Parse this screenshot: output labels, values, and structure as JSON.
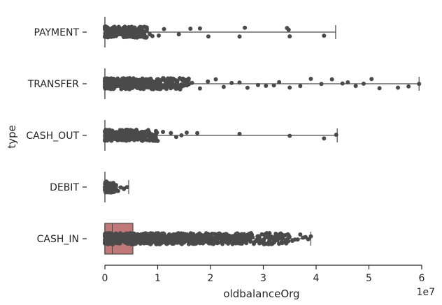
{
  "chart_data": {
    "type": "box",
    "orientation": "horizontal",
    "xlabel": "oldbalanceOrg",
    "ylabel": "type",
    "x_scale_label": "1e7",
    "xlim": [
      0,
      6
    ],
    "x_ticks": [
      0,
      1,
      2,
      3,
      4,
      5,
      6
    ],
    "categories": [
      "PAYMENT",
      "TRANSFER",
      "CASH_OUT",
      "DEBIT",
      "CASH_IN"
    ],
    "series": [
      {
        "category": "PAYMENT",
        "box": {
          "min": 0,
          "q1": 0,
          "median": 0,
          "q3": 0,
          "max": 4.37
        },
        "dense_range": [
          0,
          0.8
        ],
        "outliers": [
          0.85,
          0.9,
          1.02,
          1.12,
          1.4,
          1.62,
          1.8,
          1.96,
          2.55,
          2.65,
          3.45,
          3.48,
          3.5,
          4.15
        ]
      },
      {
        "category": "TRANSFER",
        "box": {
          "min": 0,
          "q1": 0,
          "median": 0,
          "q3": 0,
          "max": 5.95
        },
        "dense_range": [
          0,
          1.6
        ],
        "outliers": [
          1.65,
          1.8,
          1.95,
          2.1,
          2.25,
          2.4,
          2.55,
          2.7,
          2.9,
          3.05,
          3.2,
          3.3,
          3.5,
          3.7,
          3.9,
          4.1,
          4.3,
          4.5,
          4.6,
          4.75,
          4.9,
          5.05,
          5.2,
          5.55,
          5.75,
          5.95
        ]
      },
      {
        "category": "CASH_OUT",
        "box": {
          "min": 0,
          "q1": 0,
          "median": 0,
          "q3": 0,
          "max": 4.4
        },
        "dense_range": [
          0,
          1.0
        ],
        "outliers": [
          1.1,
          1.25,
          1.35,
          1.45,
          1.55,
          1.75,
          2.55,
          3.5,
          4.15,
          4.38
        ]
      },
      {
        "category": "DEBIT",
        "box": {
          "min": 0,
          "q1": 0,
          "median": 0,
          "q3": 0,
          "max": 0.45
        },
        "dense_range": [
          0,
          0.22
        ],
        "outliers": [
          0.25,
          0.3,
          0.36,
          0.42
        ]
      },
      {
        "category": "CASH_IN",
        "box": {
          "min": 0,
          "q1": 0,
          "median": 0.14,
          "q3": 0.53,
          "max": 3.9
        },
        "dense_range": [
          0,
          3.5
        ],
        "outliers": [
          3.55,
          3.6,
          3.65,
          3.7,
          3.75,
          3.8,
          3.85,
          3.9
        ]
      }
    ],
    "box_color": "#c07878",
    "point_color": "#4a4a4a",
    "grid": false
  }
}
